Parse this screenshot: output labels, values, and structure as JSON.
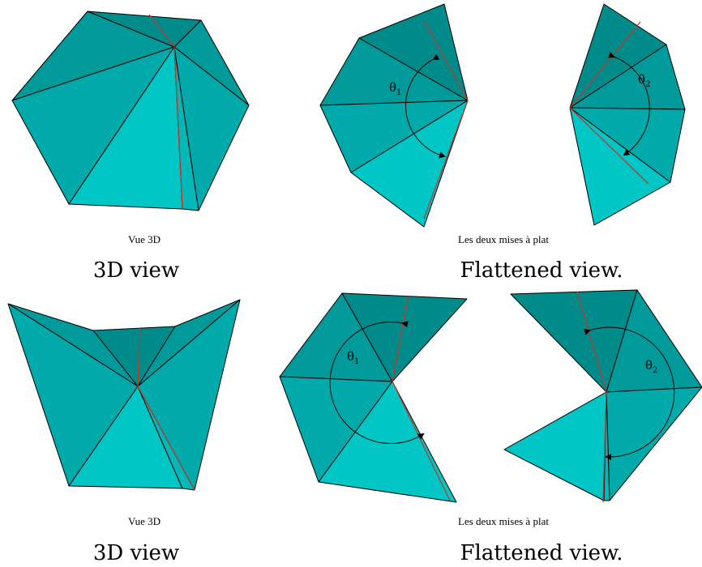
{
  "top": {
    "caption_fr_3d": "Vue 3D",
    "caption_en_3d": "3D view",
    "caption_fr_flat": "Les deux mises à plat",
    "caption_en_flat": "Flattened view.",
    "angle1": {
      "symbol": "θ",
      "subscript": "1"
    },
    "angle2": {
      "symbol": "θ",
      "subscript": "2"
    }
  },
  "bottom": {
    "caption_fr_3d": "Vue 3D",
    "caption_en_3d": "3D view",
    "caption_fr_flat": "Les deux mises à plat",
    "caption_en_flat": "Flattened view.",
    "angle1": {
      "symbol": "θ",
      "subscript": "1"
    },
    "angle2": {
      "symbol": "θ",
      "subscript": "2"
    }
  },
  "colors": {
    "face_dark": "#008b8b",
    "face_light": "#00c6c6",
    "seam": "#c0392b",
    "edge": "#000000"
  }
}
